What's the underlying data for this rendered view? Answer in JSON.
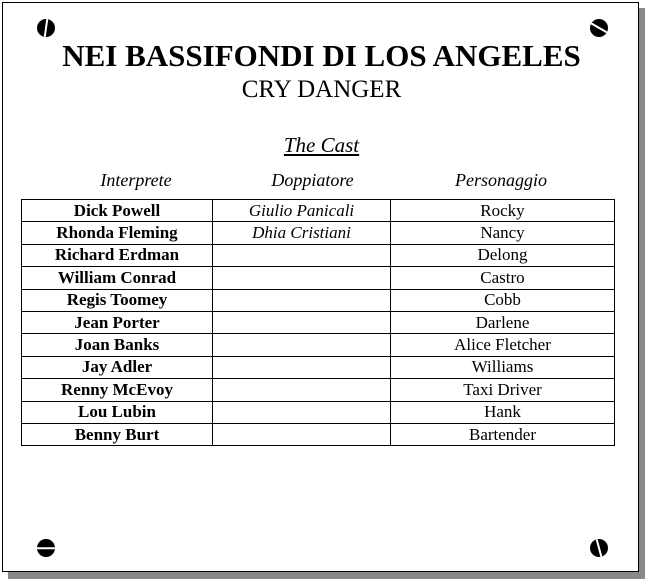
{
  "title": "NEI BASSIFONDI DI LOS ANGELES",
  "subtitle": "CRY DANGER",
  "section_title": "The Cast",
  "columns": [
    "Interprete",
    "Doppiatore",
    "Personaggio"
  ],
  "rows": [
    {
      "actor": "Dick Powell",
      "dubber": "Giulio Panicali",
      "character": "Rocky"
    },
    {
      "actor": "Rhonda Fleming",
      "dubber": "Dhia Cristiani",
      "character": "Nancy"
    },
    {
      "actor": "Richard Erdman",
      "dubber": "",
      "character": "Delong"
    },
    {
      "actor": "William Conrad",
      "dubber": "",
      "character": "Castro"
    },
    {
      "actor": "Regis Toomey",
      "dubber": "",
      "character": "Cobb"
    },
    {
      "actor": "Jean Porter",
      "dubber": "",
      "character": "Darlene"
    },
    {
      "actor": "Joan Banks",
      "dubber": "",
      "character": "Alice Fletcher"
    },
    {
      "actor": "Jay Adler",
      "dubber": "",
      "character": "Williams"
    },
    {
      "actor": "Renny McEvoy",
      "dubber": "",
      "character": "Taxi Driver"
    },
    {
      "actor": "Lou Lubin",
      "dubber": "",
      "character": "Hank"
    },
    {
      "actor": "Benny Burt",
      "dubber": "",
      "character": "Bartender"
    }
  ]
}
